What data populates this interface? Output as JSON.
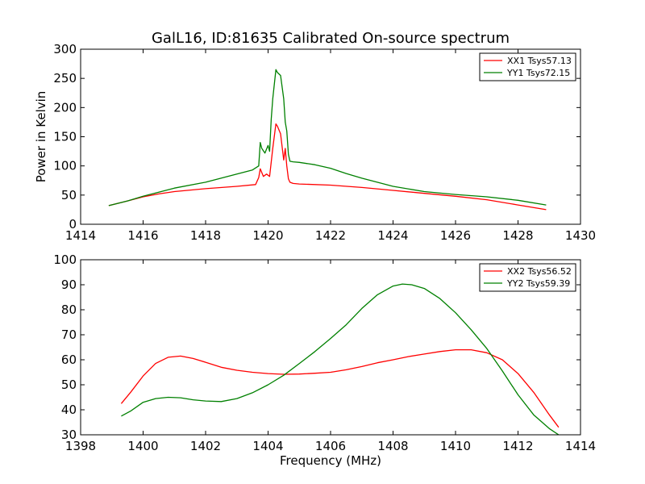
{
  "chart_data": [
    {
      "type": "line",
      "title": "GalL16, ID:81635 Calibrated On-source spectrum",
      "xlabel": "",
      "ylabel": "Power in Kelvin",
      "xlim": [
        1414,
        1430
      ],
      "ylim": [
        0,
        300
      ],
      "xticks": [
        1414,
        1416,
        1418,
        1420,
        1422,
        1424,
        1426,
        1428,
        1430
      ],
      "yticks": [
        0,
        50,
        100,
        150,
        200,
        250,
        300
      ],
      "grid": false,
      "legend_position": "top-right",
      "series": [
        {
          "name": "XX1 Tsys57.13",
          "color": "#ff0000",
          "x": [
            1414.9,
            1415.5,
            1416,
            1416.5,
            1417,
            1418,
            1419,
            1419.6,
            1419.7,
            1419.75,
            1419.85,
            1419.95,
            1420.05,
            1420.15,
            1420.25,
            1420.3,
            1420.4,
            1420.5,
            1420.55,
            1420.6,
            1420.65,
            1420.7,
            1420.8,
            1421,
            1422,
            1423,
            1424,
            1425,
            1426,
            1427,
            1428,
            1428.9
          ],
          "y": [
            32,
            40,
            47,
            52,
            56,
            61,
            65,
            68,
            80,
            95,
            82,
            86,
            82,
            130,
            172,
            168,
            155,
            110,
            130,
            100,
            78,
            72,
            70,
            69,
            67,
            63,
            58,
            53,
            48,
            42,
            33,
            25
          ]
        },
        {
          "name": "YY1 Tsys72.15",
          "color": "#008000",
          "x": [
            1414.9,
            1415.5,
            1416,
            1416.5,
            1417,
            1418,
            1419,
            1419.5,
            1419.7,
            1419.75,
            1419.8,
            1419.9,
            1420,
            1420.05,
            1420.1,
            1420.15,
            1420.25,
            1420.3,
            1420.4,
            1420.5,
            1420.55,
            1420.6,
            1420.65,
            1420.7,
            1420.8,
            1421,
            1421.5,
            1422,
            1422.5,
            1423,
            1424,
            1425,
            1426,
            1427,
            1428,
            1428.9
          ],
          "y": [
            32,
            40,
            48,
            55,
            62,
            72,
            86,
            93,
            100,
            140,
            130,
            122,
            135,
            125,
            180,
            215,
            265,
            260,
            255,
            215,
            175,
            160,
            120,
            108,
            107,
            106,
            102,
            96,
            87,
            79,
            65,
            56,
            51,
            47,
            41,
            33
          ]
        }
      ]
    },
    {
      "type": "line",
      "title": "",
      "xlabel": "Frequency (MHz)",
      "ylabel": "",
      "xlim": [
        1398,
        1414
      ],
      "ylim": [
        30,
        100
      ],
      "xticks": [
        1398,
        1400,
        1402,
        1404,
        1406,
        1408,
        1410,
        1412,
        1414
      ],
      "yticks": [
        30,
        40,
        50,
        60,
        70,
        80,
        90,
        100
      ],
      "grid": false,
      "legend_position": "top-right",
      "series": [
        {
          "name": "XX2 Tsys56.52",
          "color": "#ff0000",
          "x": [
            1399.3,
            1399.6,
            1400,
            1400.4,
            1400.8,
            1401.2,
            1401.6,
            1402,
            1402.5,
            1403,
            1403.5,
            1404,
            1404.5,
            1405,
            1405.5,
            1406,
            1406.5,
            1407,
            1407.5,
            1408,
            1408.5,
            1409,
            1409.5,
            1410,
            1410.5,
            1411,
            1411.5,
            1412,
            1412.5,
            1413,
            1413.3
          ],
          "y": [
            42.5,
            47,
            53.5,
            58.5,
            61,
            61.5,
            60.5,
            59,
            57,
            55.8,
            55,
            54.5,
            54.2,
            54.3,
            54.6,
            55,
            56,
            57.3,
            58.8,
            60,
            61.3,
            62.3,
            63.3,
            64,
            64,
            62.8,
            60,
            54.5,
            47,
            38,
            33
          ]
        },
        {
          "name": "YY2 Tsys59.39",
          "color": "#008000",
          "x": [
            1399.3,
            1399.6,
            1400,
            1400.4,
            1400.8,
            1401.2,
            1401.6,
            1402,
            1402.5,
            1403,
            1403.5,
            1404,
            1404.5,
            1405,
            1405.5,
            1406,
            1406.5,
            1407,
            1407.5,
            1408,
            1408.3,
            1408.6,
            1409,
            1409.5,
            1410,
            1410.5,
            1411,
            1411.5,
            1412,
            1412.5,
            1413,
            1413.3
          ],
          "y": [
            37.5,
            39.5,
            43,
            44.5,
            45,
            44.8,
            44,
            43.5,
            43.3,
            44.5,
            46.8,
            50,
            53.8,
            58.5,
            63.3,
            68.5,
            74,
            80.5,
            86,
            89.5,
            90.3,
            90,
            88.5,
            84.5,
            78.8,
            72,
            64.5,
            55.5,
            46,
            38,
            32.5,
            30
          ]
        }
      ]
    }
  ]
}
